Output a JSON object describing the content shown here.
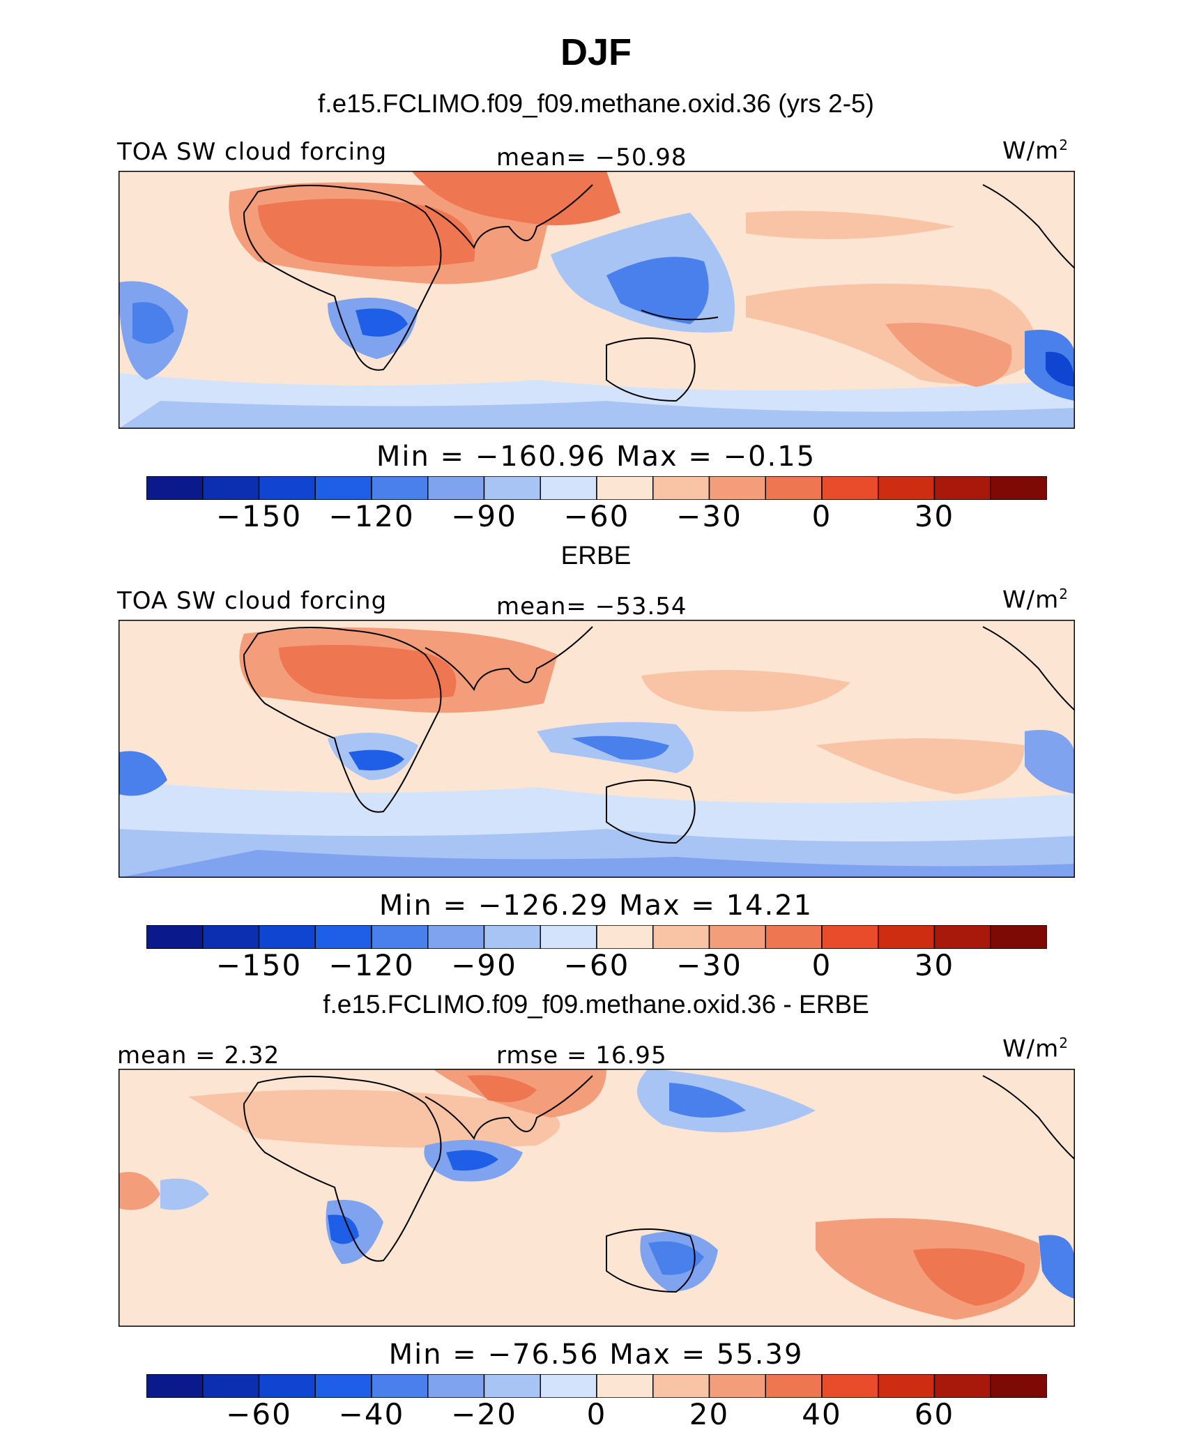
{
  "title": "DJF",
  "panels": [
    {
      "subtitle": "f.e15.FCLIMO.f09_f09.methane.oxid.36 (yrs 2-5)",
      "left_label": "TOA SW cloud forcing",
      "center_label": "mean= −50.98",
      "units": "W/m",
      "units_sup": "2",
      "minmax": "Min = −160.96 Max =  −0.15",
      "colorbar": {
        "colors": [
          "#0a1a8c",
          "#0b2fb0",
          "#0f45d1",
          "#1f5fe8",
          "#4a80ec",
          "#7fa3ef",
          "#a8c4f4",
          "#d3e3fb",
          "#fde5d4",
          "#f9c3a6",
          "#f39d7a",
          "#ee7650",
          "#e84c2a",
          "#cf2d12",
          "#a8190b",
          "#7d0a05"
        ],
        "ticks": [
          "−150",
          "−120",
          "−90",
          "−60",
          "−30",
          "0",
          "30"
        ]
      }
    },
    {
      "subtitle": "ERBE",
      "left_label": "TOA SW cloud forcing",
      "center_label": "mean= −53.54",
      "units": "W/m",
      "units_sup": "2",
      "minmax": "Min = −126.29 Max =  14.21",
      "colorbar": {
        "colors": [
          "#0a1a8c",
          "#0b2fb0",
          "#0f45d1",
          "#1f5fe8",
          "#4a80ec",
          "#7fa3ef",
          "#a8c4f4",
          "#d3e3fb",
          "#fde5d4",
          "#f9c3a6",
          "#f39d7a",
          "#ee7650",
          "#e84c2a",
          "#cf2d12",
          "#a8190b",
          "#7d0a05"
        ],
        "ticks": [
          "−150",
          "−120",
          "−90",
          "−60",
          "−30",
          "0",
          "30"
        ]
      }
    },
    {
      "subtitle": "f.e15.FCLIMO.f09_f09.methane.oxid.36 - ERBE",
      "left_label": "mean =  2.32",
      "center_label": "rmse =  16.95",
      "units": "W/m",
      "units_sup": "2",
      "minmax": "Min = −76.56 Max =  55.39",
      "colorbar": {
        "colors": [
          "#0a1a8c",
          "#0b2fb0",
          "#0f45d1",
          "#1f5fe8",
          "#4a80ec",
          "#7fa3ef",
          "#a8c4f4",
          "#d3e3fb",
          "#fde5d4",
          "#f9c3a6",
          "#f39d7a",
          "#ee7650",
          "#e84c2a",
          "#cf2d12",
          "#a8190b",
          "#7d0a05"
        ],
        "ticks": [
          "−60",
          "−40",
          "−20",
          "0",
          "20",
          "40",
          "60"
        ]
      }
    }
  ]
}
